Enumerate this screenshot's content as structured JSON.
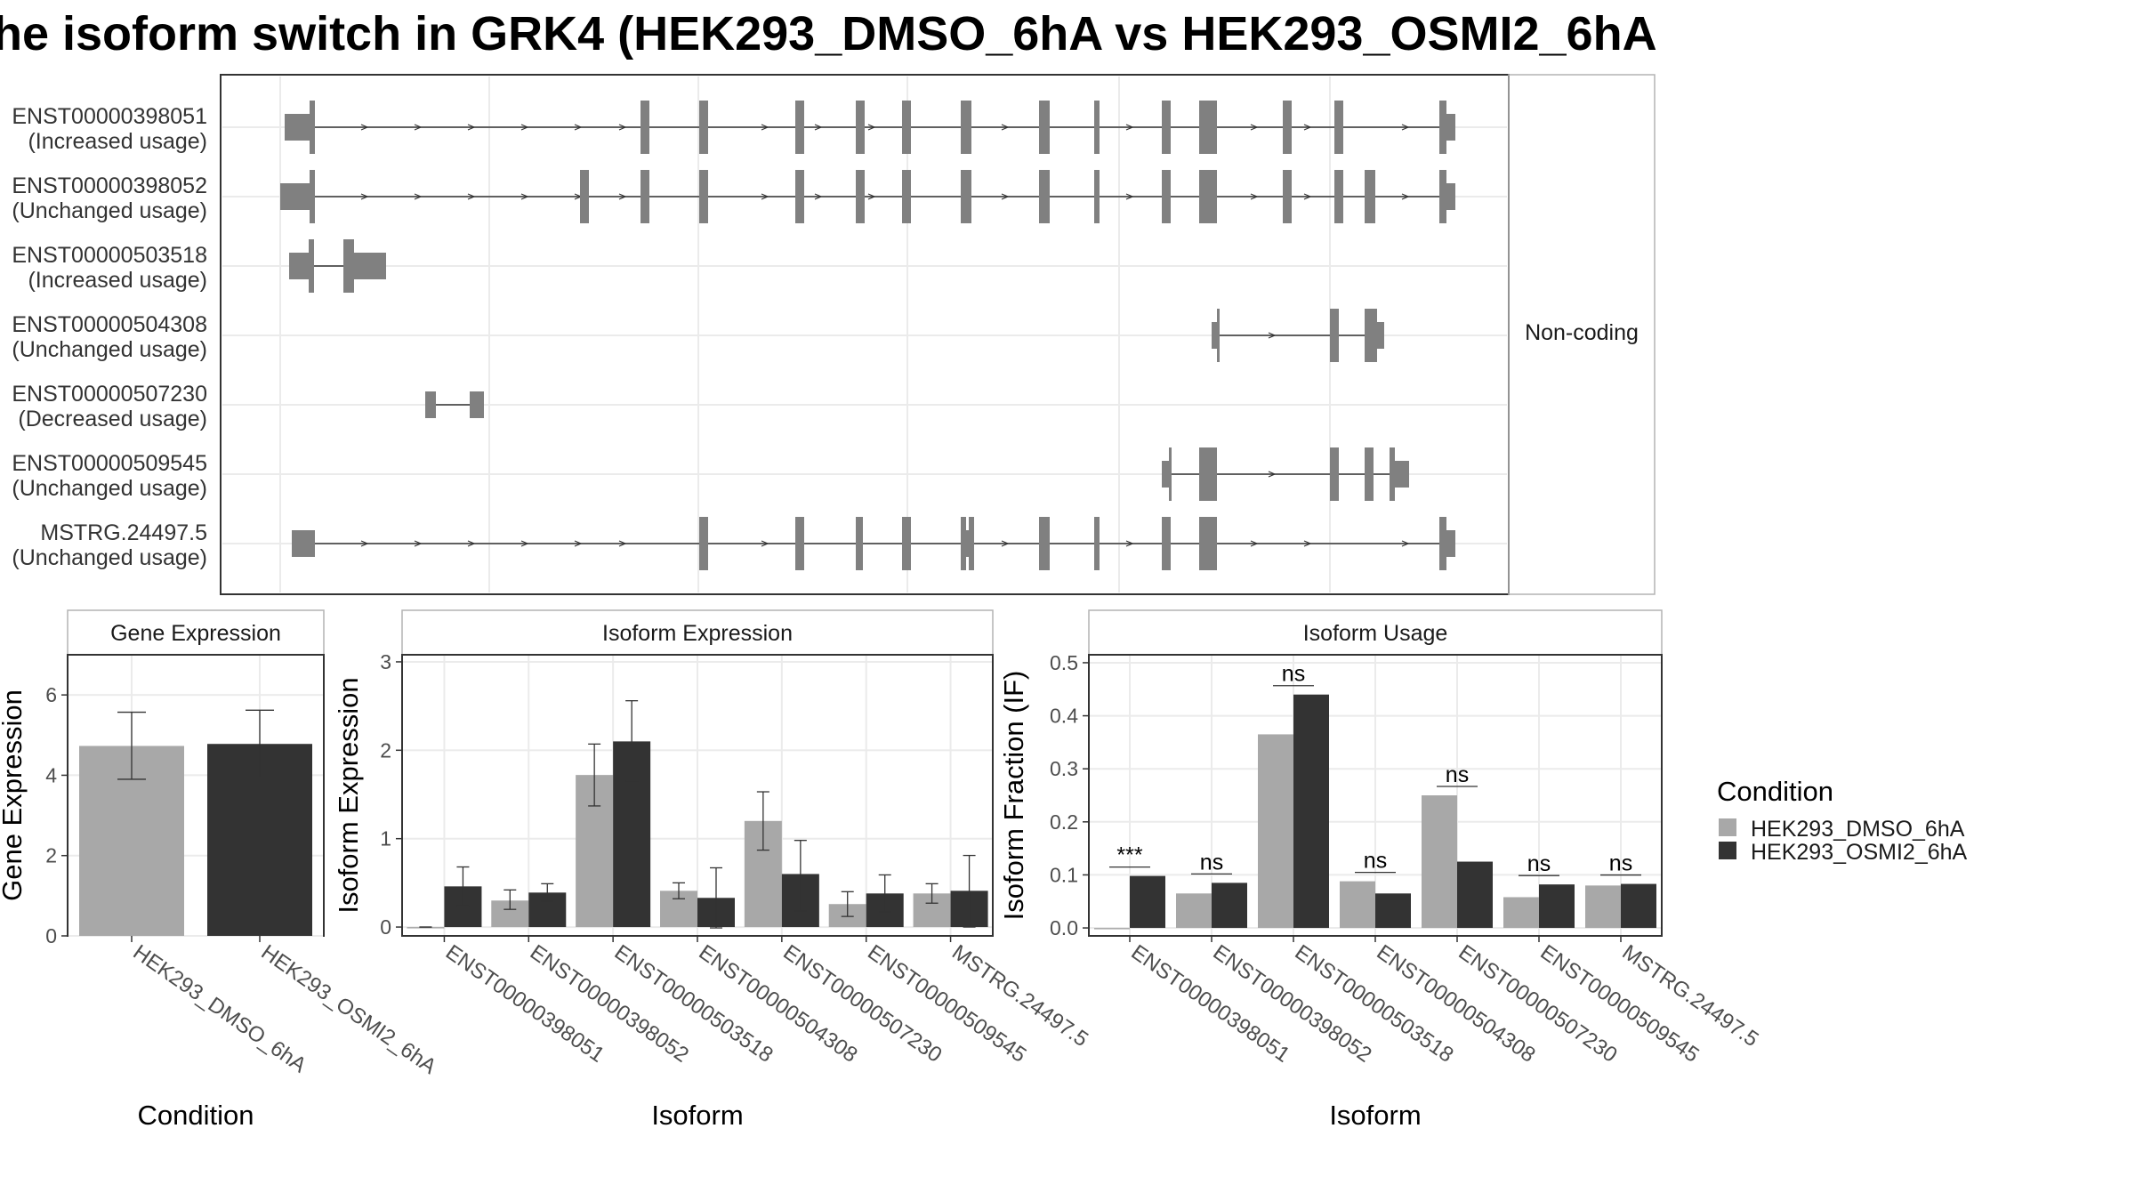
{
  "title": "he isoform switch in GRK4 (HEK293_DMSO_6hA vs HEK293_OSMI2_6hA",
  "colors": {
    "exon": "#808080",
    "dmso": "#a8a8a8",
    "osmi": "#333333",
    "grid": "#ebebeb",
    "border": "#333333",
    "strip_border": "#b3b3b3"
  },
  "transcripts": [
    {
      "id": "ENST00000398051",
      "usage": "(Increased usage)",
      "coding": true
    },
    {
      "id": "ENST00000398052",
      "usage": "(Unchanged usage)",
      "coding": true
    },
    {
      "id": "ENST00000503518",
      "usage": "(Increased usage)",
      "coding": true
    },
    {
      "id": "ENST00000504308",
      "usage": "(Unchanged usage)",
      "coding": false
    },
    {
      "id": "ENST00000507230",
      "usage": "(Decreased usage)",
      "coding": true
    },
    {
      "id": "ENST00000509545",
      "usage": "(Unchanged usage)",
      "coding": true
    },
    {
      "id": "MSTRG.24497.5",
      "usage": "(Unchanged usage)",
      "coding": true
    }
  ],
  "noncoding_label": "Non-coding",
  "chart_data": [
    {
      "type": "bar",
      "panel": "Gene Expression",
      "xlabel": "Condition",
      "ylabel": "Gene Expression",
      "ylim": [
        0,
        7.0
      ],
      "yticks": [
        0,
        2,
        4,
        6
      ],
      "categories": [
        "HEK293_DMSO_6hA",
        "HEK293_OSMI2_6hA"
      ],
      "values": [
        4.73,
        4.78
      ],
      "errors": [
        [
          3.9,
          5.57
        ],
        [
          3.95,
          5.62
        ]
      ]
    },
    {
      "type": "bar",
      "panel": "Isoform Expression",
      "xlabel": "Isoform",
      "ylabel": "Isoform Expression",
      "ylim": [
        -0.1,
        3.08
      ],
      "yticks": [
        0,
        1,
        2,
        3
      ],
      "categories": [
        "ENST00000398051",
        "ENST00000398052",
        "ENST00000503518",
        "ENST00000504308",
        "ENST00000507230",
        "ENST00000509545",
        "MSTRG.24497.5"
      ],
      "series": [
        {
          "name": "HEK293_DMSO_6hA",
          "values": [
            0.0,
            0.3,
            1.72,
            0.41,
            1.2,
            0.26,
            0.38
          ],
          "errors": [
            [
              0.0,
              0.0
            ],
            [
              0.2,
              0.42
            ],
            [
              1.37,
              2.07
            ],
            [
              0.32,
              0.5
            ],
            [
              0.87,
              1.53
            ],
            [
              0.12,
              0.4
            ],
            [
              0.27,
              0.49
            ]
          ]
        },
        {
          "name": "HEK293_OSMI2_6hA",
          "values": [
            0.46,
            0.39,
            2.1,
            0.33,
            0.6,
            0.38,
            0.41
          ],
          "errors": [
            [
              0.24,
              0.68
            ],
            [
              0.29,
              0.49
            ],
            [
              1.65,
              2.56
            ],
            [
              -0.01,
              0.67
            ],
            [
              0.18,
              0.98
            ],
            [
              0.17,
              0.59
            ],
            [
              0.0,
              0.81
            ]
          ]
        }
      ]
    },
    {
      "type": "bar",
      "panel": "Isoform Usage",
      "xlabel": "Isoform",
      "ylabel": "Isoform Fraction (IF)",
      "ylim": [
        -0.015,
        0.515
      ],
      "yticks": [
        "0.0",
        "0.1",
        "0.2",
        "0.3",
        "0.4",
        "0.5"
      ],
      "categories": [
        "ENST00000398051",
        "ENST00000398052",
        "ENST00000503518",
        "ENST00000504308",
        "ENST00000507230",
        "ENST00000509545",
        "MSTRG.24497.5"
      ],
      "series": [
        {
          "name": "HEK293_DMSO_6hA",
          "values": [
            0.0,
            0.065,
            0.365,
            0.088,
            0.25,
            0.058,
            0.08
          ]
        },
        {
          "name": "HEK293_OSMI2_6hA",
          "values": [
            0.098,
            0.085,
            0.44,
            0.065,
            0.125,
            0.082,
            0.083
          ]
        }
      ],
      "significance": [
        "***",
        "ns",
        "ns",
        "ns",
        "ns",
        "ns",
        "ns"
      ]
    }
  ],
  "legend": {
    "title": "Condition",
    "items": [
      {
        "label": "HEK293_DMSO_6hA"
      },
      {
        "label": "HEK293_OSMI2_6hA"
      }
    ]
  }
}
